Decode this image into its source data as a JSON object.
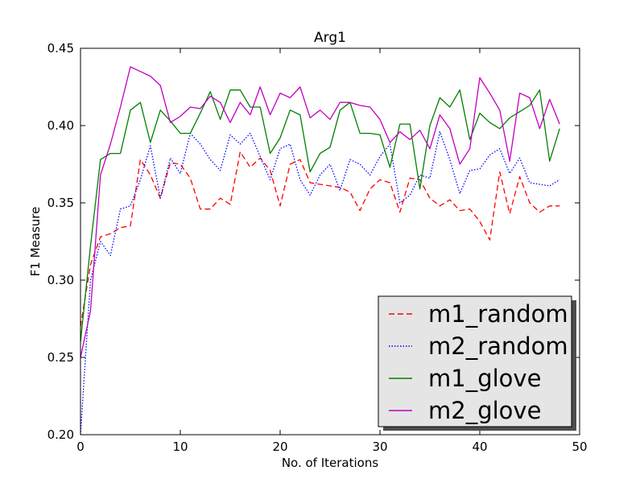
{
  "chart_data": {
    "type": "line",
    "title": "Arg1",
    "xlabel": "No. of Iterations",
    "ylabel": "F1 Measure",
    "xlim": [
      0,
      50
    ],
    "ylim": [
      0.2,
      0.45
    ],
    "xticks": [
      0,
      10,
      20,
      30,
      40,
      50
    ],
    "yticks": [
      0.2,
      0.25,
      0.3,
      0.35,
      0.4,
      0.45
    ],
    "xtick_labels": [
      "0",
      "10",
      "20",
      "30",
      "40",
      "50"
    ],
    "ytick_labels": [
      "0.20",
      "0.25",
      "0.30",
      "0.35",
      "0.40",
      "0.45"
    ],
    "legend_position": "bottom-right",
    "x": [
      0,
      1,
      2,
      3,
      4,
      5,
      6,
      7,
      8,
      9,
      10,
      11,
      12,
      13,
      14,
      15,
      16,
      17,
      18,
      19,
      20,
      21,
      22,
      23,
      24,
      25,
      26,
      27,
      28,
      29,
      30,
      31,
      32,
      33,
      34,
      35,
      36,
      37,
      38,
      39,
      40,
      41,
      42,
      43,
      44,
      45,
      46,
      47,
      48
    ],
    "series": [
      {
        "name": "m1_random",
        "color": "#ff0000",
        "style": "dashed",
        "values": [
          0.27,
          0.31,
          0.328,
          0.33,
          0.334,
          0.335,
          0.378,
          0.368,
          0.353,
          0.376,
          0.375,
          0.366,
          0.346,
          0.346,
          0.353,
          0.349,
          0.383,
          0.373,
          0.379,
          0.371,
          0.348,
          0.375,
          0.378,
          0.363,
          0.362,
          0.361,
          0.36,
          0.357,
          0.345,
          0.359,
          0.365,
          0.363,
          0.344,
          0.366,
          0.365,
          0.353,
          0.348,
          0.352,
          0.345,
          0.346,
          0.338,
          0.326,
          0.37,
          0.343,
          0.367,
          0.35,
          0.344,
          0.348,
          0.348
        ]
      },
      {
        "name": "m2_random",
        "color": "#0000ff",
        "style": "dotted",
        "values": [
          0.2,
          0.3,
          0.325,
          0.316,
          0.346,
          0.348,
          0.365,
          0.387,
          0.353,
          0.379,
          0.369,
          0.395,
          0.388,
          0.378,
          0.371,
          0.394,
          0.388,
          0.395,
          0.38,
          0.365,
          0.385,
          0.388,
          0.365,
          0.355,
          0.368,
          0.375,
          0.358,
          0.378,
          0.375,
          0.368,
          0.38,
          0.388,
          0.35,
          0.355,
          0.368,
          0.366,
          0.396,
          0.378,
          0.356,
          0.371,
          0.372,
          0.381,
          0.385,
          0.369,
          0.379,
          0.363,
          0.362,
          0.361,
          0.365
        ]
      },
      {
        "name": "m1_glove",
        "color": "#008000",
        "style": "solid",
        "values": [
          0.26,
          0.322,
          0.378,
          0.382,
          0.382,
          0.41,
          0.415,
          0.389,
          0.41,
          0.403,
          0.395,
          0.395,
          0.408,
          0.422,
          0.404,
          0.423,
          0.423,
          0.412,
          0.412,
          0.382,
          0.392,
          0.41,
          0.407,
          0.37,
          0.382,
          0.386,
          0.41,
          0.415,
          0.395,
          0.395,
          0.394,
          0.373,
          0.401,
          0.401,
          0.359,
          0.4,
          0.418,
          0.412,
          0.423,
          0.391,
          0.408,
          0.402,
          0.398,
          0.405,
          0.409,
          0.413,
          0.423,
          0.377,
          0.398
        ]
      },
      {
        "name": "m2_glove",
        "color": "#bf00bf",
        "style": "solid",
        "values": [
          0.25,
          0.28,
          0.368,
          0.388,
          0.412,
          0.438,
          0.435,
          0.432,
          0.426,
          0.402,
          0.406,
          0.412,
          0.411,
          0.419,
          0.415,
          0.402,
          0.415,
          0.407,
          0.425,
          0.407,
          0.421,
          0.418,
          0.425,
          0.405,
          0.41,
          0.404,
          0.415,
          0.415,
          0.413,
          0.412,
          0.404,
          0.389,
          0.396,
          0.391,
          0.397,
          0.385,
          0.407,
          0.398,
          0.375,
          0.385,
          0.431,
          0.421,
          0.41,
          0.377,
          0.421,
          0.418,
          0.398,
          0.417,
          0.401
        ]
      }
    ]
  }
}
